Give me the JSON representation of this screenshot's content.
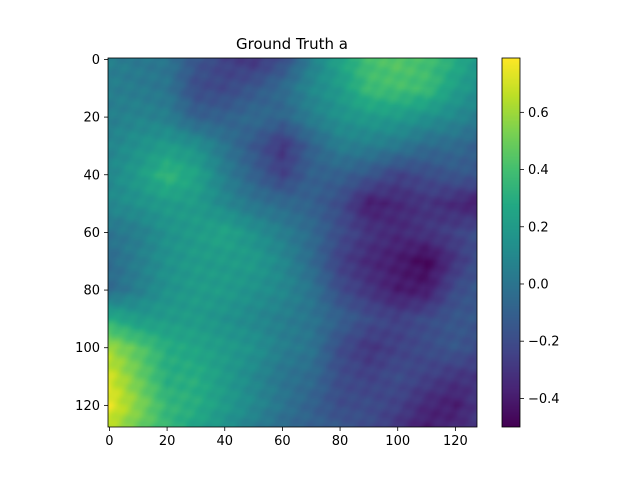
{
  "chart_data": {
    "type": "heatmap",
    "title": "Ground Truth a",
    "xlabel": "",
    "ylabel": "",
    "grid_size": [
      128,
      128
    ],
    "x_ticks": [
      0,
      20,
      40,
      60,
      80,
      100,
      120
    ],
    "y_ticks": [
      0,
      20,
      40,
      60,
      80,
      100,
      120
    ],
    "colormap": "viridis",
    "colorbar": {
      "vmin": -0.5,
      "vmax": 0.79,
      "ticks": [
        -0.4,
        -0.2,
        0.0,
        0.2,
        0.4,
        0.6
      ],
      "tick_labels": [
        "−0.4",
        "−0.2",
        "0.0",
        "0.2",
        "0.4",
        "0.6"
      ]
    },
    "field_rows": [
      0,
      10,
      20,
      30,
      40,
      50,
      60,
      70,
      80,
      90,
      100,
      110,
      120,
      127
    ],
    "field_cols": [
      0,
      10,
      20,
      30,
      40,
      50,
      60,
      70,
      80,
      90,
      100,
      110,
      120,
      127
    ],
    "field_values": [
      [
        0.05,
        0.02,
        0.0,
        -0.15,
        -0.25,
        -0.3,
        -0.2,
        0.05,
        0.25,
        0.4,
        0.45,
        0.4,
        0.3,
        0.2
      ],
      [
        0.05,
        0.03,
        0.0,
        -0.2,
        -0.22,
        -0.15,
        -0.05,
        0.1,
        0.2,
        0.38,
        0.4,
        0.38,
        0.22,
        0.15
      ],
      [
        0.05,
        0.08,
        0.05,
        -0.1,
        -0.1,
        -0.05,
        -0.08,
        0.05,
        0.15,
        0.2,
        0.2,
        0.15,
        0.1,
        0.05
      ],
      [
        0.08,
        0.15,
        0.2,
        0.15,
        0.0,
        -0.15,
        -0.3,
        -0.1,
        0.05,
        0.05,
        0.02,
        -0.05,
        -0.05,
        -0.1
      ],
      [
        0.1,
        0.2,
        0.35,
        0.25,
        0.05,
        -0.1,
        -0.25,
        -0.1,
        -0.1,
        -0.15,
        -0.25,
        -0.2,
        -0.15,
        -0.15
      ],
      [
        0.1,
        0.15,
        0.2,
        0.2,
        0.1,
        0.0,
        -0.05,
        -0.1,
        -0.2,
        -0.4,
        -0.35,
        -0.3,
        -0.35,
        -0.4
      ],
      [
        0.0,
        0.05,
        0.15,
        0.2,
        0.25,
        0.15,
        0.05,
        -0.05,
        -0.2,
        -0.3,
        -0.35,
        -0.3,
        -0.25,
        -0.2
      ],
      [
        -0.05,
        0.05,
        0.15,
        0.2,
        0.2,
        0.2,
        0.1,
        -0.05,
        -0.25,
        -0.35,
        -0.4,
        -0.48,
        -0.3,
        -0.2
      ],
      [
        -0.05,
        0.05,
        0.15,
        0.2,
        0.2,
        0.15,
        0.1,
        0.0,
        -0.2,
        -0.3,
        -0.4,
        -0.4,
        -0.2,
        -0.15
      ],
      [
        0.3,
        0.2,
        0.2,
        0.2,
        0.15,
        0.1,
        0.05,
        0.0,
        -0.1,
        -0.2,
        -0.25,
        -0.2,
        -0.15,
        -0.15
      ],
      [
        0.6,
        0.45,
        0.3,
        0.25,
        0.2,
        0.15,
        0.05,
        0.0,
        -0.2,
        -0.3,
        -0.25,
        -0.2,
        -0.15,
        -0.2
      ],
      [
        0.7,
        0.5,
        0.3,
        0.3,
        0.2,
        0.1,
        0.0,
        -0.05,
        -0.2,
        -0.25,
        -0.2,
        -0.25,
        -0.3,
        -0.3
      ],
      [
        0.75,
        0.55,
        0.35,
        0.3,
        0.2,
        0.1,
        0.0,
        -0.1,
        -0.2,
        -0.2,
        -0.25,
        -0.35,
        -0.4,
        -0.3
      ],
      [
        0.65,
        0.5,
        0.35,
        0.25,
        0.15,
        0.05,
        -0.05,
        -0.1,
        -0.15,
        -0.2,
        -0.3,
        -0.4,
        -0.35,
        -0.3
      ]
    ]
  }
}
